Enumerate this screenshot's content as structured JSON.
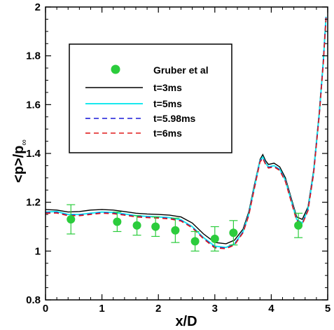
{
  "chart_data": {
    "type": "line",
    "xlabel": "x/D",
    "ylabel_main": "<p>/p",
    "ylabel_sub": "∞",
    "xlim": [
      0,
      5
    ],
    "ylim": [
      0.8,
      2.0
    ],
    "x_ticks": [
      0,
      1,
      2,
      3,
      4,
      5
    ],
    "y_ticks": [
      0.8,
      1,
      1.2,
      1.4,
      1.6,
      1.8,
      2
    ],
    "x_tick_labels": [
      "0",
      "1",
      "2",
      "3",
      "4",
      "5"
    ],
    "y_tick_labels": [
      "0.8",
      "1",
      "1.2",
      "1.4",
      "1.6",
      "1.8",
      "2"
    ],
    "grid": false,
    "legend_position": "upper-left",
    "experiment": {
      "name": "Gruber et al",
      "color": "#2bcc3c",
      "points": [
        {
          "x": 0.45,
          "y": 1.13,
          "err": 0.06
        },
        {
          "x": 1.27,
          "y": 1.12,
          "err": 0.04
        },
        {
          "x": 1.62,
          "y": 1.105,
          "err": 0.04
        },
        {
          "x": 1.95,
          "y": 1.1,
          "err": 0.04
        },
        {
          "x": 2.3,
          "y": 1.085,
          "err": 0.05
        },
        {
          "x": 2.65,
          "y": 1.04,
          "err": 0.04
        },
        {
          "x": 3.0,
          "y": 1.05,
          "err": 0.05
        },
        {
          "x": 3.33,
          "y": 1.075,
          "err": 0.05
        },
        {
          "x": 4.48,
          "y": 1.105,
          "err": 0.05
        }
      ]
    },
    "series": [
      {
        "name": "t=3ms",
        "color": "#000000",
        "dash": "solid",
        "points": [
          [
            0,
            1.17
          ],
          [
            0.2,
            1.168
          ],
          [
            0.4,
            1.16
          ],
          [
            0.6,
            1.162
          ],
          [
            0.8,
            1.168
          ],
          [
            1.0,
            1.17
          ],
          [
            1.2,
            1.168
          ],
          [
            1.4,
            1.162
          ],
          [
            1.6,
            1.155
          ],
          [
            1.8,
            1.152
          ],
          [
            2.0,
            1.15
          ],
          [
            2.2,
            1.147
          ],
          [
            2.4,
            1.14
          ],
          [
            2.6,
            1.115
          ],
          [
            2.8,
            1.07
          ],
          [
            3.0,
            1.035
          ],
          [
            3.2,
            1.03
          ],
          [
            3.35,
            1.045
          ],
          [
            3.5,
            1.09
          ],
          [
            3.6,
            1.16
          ],
          [
            3.7,
            1.27
          ],
          [
            3.8,
            1.375
          ],
          [
            3.85,
            1.395
          ],
          [
            3.9,
            1.37
          ],
          [
            3.95,
            1.355
          ],
          [
            4.05,
            1.36
          ],
          [
            4.15,
            1.345
          ],
          [
            4.25,
            1.3
          ],
          [
            4.35,
            1.22
          ],
          [
            4.45,
            1.14
          ],
          [
            4.55,
            1.13
          ],
          [
            4.65,
            1.18
          ],
          [
            4.75,
            1.33
          ],
          [
            4.85,
            1.57
          ],
          [
            4.92,
            1.78
          ],
          [
            4.97,
            1.96
          ]
        ]
      },
      {
        "name": "t=5ms",
        "color": "#19e8ee",
        "dash": "solid",
        "points": [
          [
            0,
            1.16
          ],
          [
            0.2,
            1.162
          ],
          [
            0.4,
            1.15
          ],
          [
            0.6,
            1.15
          ],
          [
            0.8,
            1.155
          ],
          [
            1.0,
            1.16
          ],
          [
            1.2,
            1.158
          ],
          [
            1.4,
            1.152
          ],
          [
            1.6,
            1.145
          ],
          [
            1.8,
            1.142
          ],
          [
            2.0,
            1.14
          ],
          [
            2.2,
            1.137
          ],
          [
            2.4,
            1.128
          ],
          [
            2.6,
            1.1
          ],
          [
            2.8,
            1.055
          ],
          [
            3.0,
            1.02
          ],
          [
            3.2,
            1.015
          ],
          [
            3.35,
            1.03
          ],
          [
            3.5,
            1.08
          ],
          [
            3.6,
            1.15
          ],
          [
            3.7,
            1.26
          ],
          [
            3.8,
            1.37
          ],
          [
            3.85,
            1.385
          ],
          [
            3.9,
            1.36
          ],
          [
            3.95,
            1.345
          ],
          [
            4.05,
            1.35
          ],
          [
            4.15,
            1.335
          ],
          [
            4.25,
            1.29
          ],
          [
            4.35,
            1.21
          ],
          [
            4.45,
            1.13
          ],
          [
            4.55,
            1.115
          ],
          [
            4.65,
            1.17
          ],
          [
            4.75,
            1.32
          ],
          [
            4.85,
            1.56
          ],
          [
            4.92,
            1.77
          ],
          [
            4.97,
            1.96
          ]
        ]
      },
      {
        "name": "t=5.98ms",
        "color": "#1a1ad8",
        "dash": "dashed",
        "points": [
          [
            0,
            1.157
          ],
          [
            0.2,
            1.158
          ],
          [
            0.4,
            1.147
          ],
          [
            0.6,
            1.147
          ],
          [
            0.8,
            1.152
          ],
          [
            1.0,
            1.157
          ],
          [
            1.2,
            1.155
          ],
          [
            1.4,
            1.149
          ],
          [
            1.6,
            1.142
          ],
          [
            1.8,
            1.139
          ],
          [
            2.0,
            1.137
          ],
          [
            2.2,
            1.134
          ],
          [
            2.4,
            1.125
          ],
          [
            2.6,
            1.097
          ],
          [
            2.8,
            1.052
          ],
          [
            3.0,
            1.016
          ],
          [
            3.2,
            1.012
          ],
          [
            3.35,
            1.027
          ],
          [
            3.5,
            1.077
          ],
          [
            3.6,
            1.147
          ],
          [
            3.7,
            1.257
          ],
          [
            3.8,
            1.367
          ],
          [
            3.85,
            1.382
          ],
          [
            3.9,
            1.357
          ],
          [
            3.95,
            1.342
          ],
          [
            4.05,
            1.347
          ],
          [
            4.15,
            1.332
          ],
          [
            4.25,
            1.287
          ],
          [
            4.35,
            1.207
          ],
          [
            4.45,
            1.127
          ],
          [
            4.55,
            1.112
          ],
          [
            4.65,
            1.167
          ],
          [
            4.75,
            1.317
          ],
          [
            4.85,
            1.557
          ],
          [
            4.92,
            1.767
          ],
          [
            4.97,
            1.957
          ]
        ]
      },
      {
        "name": "t=6ms",
        "color": "#e01a1a",
        "dash": "dashed",
        "points": [
          [
            0,
            1.155
          ],
          [
            0.2,
            1.156
          ],
          [
            0.4,
            1.145
          ],
          [
            0.6,
            1.145
          ],
          [
            0.8,
            1.15
          ],
          [
            1.0,
            1.155
          ],
          [
            1.2,
            1.153
          ],
          [
            1.4,
            1.147
          ],
          [
            1.6,
            1.14
          ],
          [
            1.8,
            1.137
          ],
          [
            2.0,
            1.135
          ],
          [
            2.2,
            1.132
          ],
          [
            2.4,
            1.123
          ],
          [
            2.6,
            1.095
          ],
          [
            2.8,
            1.05
          ],
          [
            3.0,
            1.013
          ],
          [
            3.2,
            1.01
          ],
          [
            3.35,
            1.025
          ],
          [
            3.5,
            1.075
          ],
          [
            3.6,
            1.145
          ],
          [
            3.7,
            1.255
          ],
          [
            3.8,
            1.365
          ],
          [
            3.85,
            1.38
          ],
          [
            3.9,
            1.355
          ],
          [
            3.95,
            1.34
          ],
          [
            4.05,
            1.345
          ],
          [
            4.15,
            1.33
          ],
          [
            4.25,
            1.285
          ],
          [
            4.35,
            1.205
          ],
          [
            4.45,
            1.125
          ],
          [
            4.55,
            1.11
          ],
          [
            4.65,
            1.165
          ],
          [
            4.75,
            1.315
          ],
          [
            4.85,
            1.555
          ],
          [
            4.92,
            1.765
          ],
          [
            4.97,
            1.955
          ]
        ]
      }
    ]
  }
}
